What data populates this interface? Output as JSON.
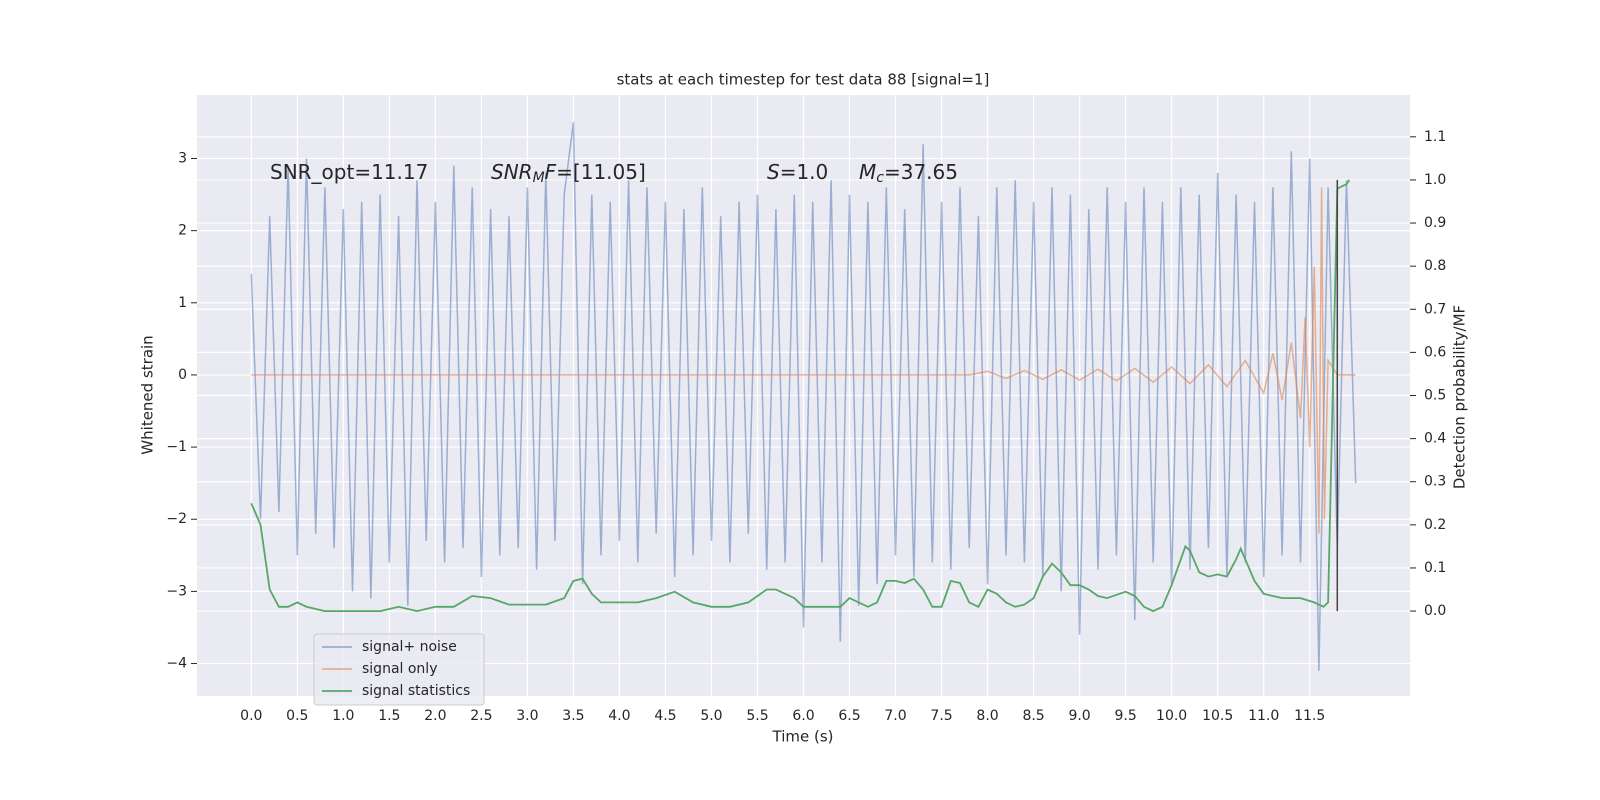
{
  "chart_data": {
    "type": "line",
    "title": "stats at each timestep for test data 88 [signal=1]",
    "xlabel": "Time (s)",
    "ylabel": "Whitened strain",
    "y2label": "Detection probability/MF",
    "xlim": [
      -0.59,
      12.59
    ],
    "ylim": [
      -4.45,
      3.88
    ],
    "y2lim": [
      -0.197,
      1.197
    ],
    "xticks": [
      {
        "value": 0,
        "label": "0.0"
      },
      0.5,
      {
        "value": 1,
        "label": "1.0"
      },
      1.5,
      {
        "value": 2,
        "label": "2.0"
      },
      2.5,
      {
        "value": 3,
        "label": "3.0"
      },
      3.5,
      {
        "value": 4,
        "label": "4.0"
      },
      4.5,
      {
        "value": 5,
        "label": "5.0"
      },
      5.5,
      {
        "value": 6,
        "label": "6.0"
      },
      6.5,
      {
        "value": 7,
        "label": "7.0"
      },
      7.5,
      {
        "value": 8,
        "label": "8.0"
      },
      8.5,
      {
        "value": 9,
        "label": "9.0"
      },
      9.5,
      {
        "value": 10,
        "label": "10.0"
      },
      10.5,
      {
        "value": 11,
        "label": "11.0"
      },
      11.5
    ],
    "yticks": [
      {
        "value": -4,
        "label": "−4"
      },
      {
        "value": -3,
        "label": "−3"
      },
      {
        "value": -2,
        "label": "−2"
      },
      {
        "value": -1,
        "label": "−1"
      },
      0,
      1,
      2,
      3
    ],
    "y2ticks": [
      {
        "value": 0,
        "label": "0.0"
      },
      0.1,
      0.2,
      0.3,
      0.4,
      0.5,
      0.6,
      0.7,
      0.8,
      0.9,
      {
        "value": 1,
        "label": "1.0"
      },
      1.1
    ],
    "grid": true,
    "legend": "lower left",
    "series": [
      {
        "name": "signal+ noise",
        "color": "#4c72b0",
        "opacity": 0.5,
        "x": [
          0.0,
          0.1,
          0.2,
          0.3,
          0.4,
          0.5,
          0.6,
          0.7,
          0.8,
          0.9,
          1.0,
          1.1,
          1.2,
          1.3,
          1.4,
          1.5,
          1.6,
          1.7,
          1.8,
          1.9,
          2.0,
          2.1,
          2.2,
          2.3,
          2.4,
          2.5,
          2.6,
          2.7,
          2.8,
          2.9,
          3.0,
          3.1,
          3.2,
          3.3,
          3.4,
          3.5,
          3.6,
          3.7,
          3.8,
          3.9,
          4.0,
          4.1,
          4.2,
          4.3,
          4.4,
          4.5,
          4.6,
          4.7,
          4.8,
          4.9,
          5.0,
          5.1,
          5.2,
          5.3,
          5.4,
          5.5,
          5.6,
          5.7,
          5.8,
          5.9,
          6.0,
          6.1,
          6.2,
          6.3,
          6.4,
          6.5,
          6.6,
          6.7,
          6.8,
          6.9,
          7.0,
          7.1,
          7.2,
          7.3,
          7.4,
          7.5,
          7.6,
          7.7,
          7.8,
          7.9,
          8.0,
          8.1,
          8.2,
          8.3,
          8.4,
          8.5,
          8.6,
          8.7,
          8.8,
          8.9,
          9.0,
          9.1,
          9.2,
          9.3,
          9.4,
          9.5,
          9.6,
          9.7,
          9.8,
          9.9,
          10.0,
          10.1,
          10.2,
          10.3,
          10.4,
          10.5,
          10.6,
          10.7,
          10.8,
          10.9,
          11.0,
          11.1,
          11.2,
          11.3,
          11.4,
          11.5,
          11.6,
          11.7,
          11.8,
          11.9,
          12.0
        ],
        "values": [
          1.4,
          -2.0,
          2.2,
          -1.9,
          2.9,
          -2.5,
          3.0,
          -2.2,
          2.6,
          -2.4,
          2.3,
          -3.0,
          2.4,
          -3.1,
          2.5,
          -2.6,
          2.2,
          -3.2,
          2.7,
          -2.3,
          2.4,
          -2.6,
          2.9,
          -2.4,
          2.6,
          -2.8,
          2.3,
          -2.5,
          2.2,
          -2.4,
          2.6,
          -2.7,
          2.8,
          -2.3,
          2.5,
          3.5,
          -2.9,
          2.5,
          -2.5,
          2.4,
          -2.3,
          2.7,
          -2.6,
          2.6,
          -2.2,
          2.4,
          -2.8,
          2.3,
          -2.5,
          2.6,
          -2.3,
          2.2,
          -2.6,
          2.4,
          -2.2,
          2.5,
          -2.7,
          2.3,
          -2.6,
          2.5,
          -3.5,
          2.4,
          -2.6,
          2.7,
          -3.7,
          2.5,
          -3.2,
          2.4,
          -2.9,
          2.6,
          -2.5,
          2.3,
          -2.8,
          3.2,
          -2.6,
          2.4,
          -2.7,
          2.6,
          -2.4,
          2.2,
          -2.9,
          2.6,
          -2.5,
          2.7,
          -2.6,
          2.4,
          -2.8,
          2.6,
          -3.0,
          2.5,
          -3.6,
          2.3,
          -2.7,
          2.6,
          -2.5,
          2.4,
          -3.4,
          2.6,
          -2.6,
          2.4,
          -2.9,
          2.6,
          -2.7,
          2.5,
          -2.4,
          2.8,
          -2.8,
          2.5,
          -2.6,
          2.4,
          -2.8,
          2.6,
          -2.5,
          3.1,
          -2.6,
          3.0,
          -4.1,
          2.6,
          -2.4,
          2.7,
          -1.5
        ]
      },
      {
        "name": "signal only",
        "color": "#dd8452",
        "opacity": 0.6,
        "x": [
          0,
          7.8,
          8.0,
          8.2,
          8.4,
          8.6,
          8.8,
          9.0,
          9.2,
          9.4,
          9.6,
          9.8,
          10.0,
          10.2,
          10.4,
          10.6,
          10.8,
          11.0,
          11.1,
          11.2,
          11.3,
          11.4,
          11.45,
          11.5,
          11.55,
          11.6,
          11.63,
          11.66,
          11.7,
          11.8,
          12.0
        ],
        "values": [
          0,
          0,
          0.05,
          -0.05,
          0.06,
          -0.06,
          0.07,
          -0.07,
          0.08,
          -0.08,
          0.09,
          -0.1,
          0.11,
          -0.12,
          0.14,
          -0.16,
          0.2,
          -0.25,
          0.3,
          -0.35,
          0.45,
          -0.6,
          0.8,
          -1.0,
          1.5,
          -2.2,
          2.6,
          -2.0,
          0.2,
          0,
          0
        ]
      },
      {
        "name": "signal statistics",
        "color": "#55a868",
        "opacity": 1,
        "axis": "y2",
        "x": [
          0.0,
          0.1,
          0.2,
          0.3,
          0.4,
          0.5,
          0.6,
          0.8,
          1.0,
          1.2,
          1.4,
          1.6,
          1.8,
          2.0,
          2.2,
          2.4,
          2.6,
          2.8,
          3.0,
          3.2,
          3.4,
          3.5,
          3.6,
          3.7,
          3.8,
          4.0,
          4.2,
          4.4,
          4.6,
          4.8,
          5.0,
          5.2,
          5.4,
          5.6,
          5.7,
          5.9,
          6.0,
          6.2,
          6.4,
          6.5,
          6.6,
          6.7,
          6.8,
          6.9,
          7.0,
          7.1,
          7.2,
          7.3,
          7.4,
          7.5,
          7.6,
          7.7,
          7.8,
          7.9,
          8.0,
          8.1,
          8.2,
          8.3,
          8.4,
          8.5,
          8.6,
          8.7,
          8.8,
          8.9,
          9.0,
          9.1,
          9.2,
          9.3,
          9.5,
          9.6,
          9.7,
          9.8,
          9.9,
          10.0,
          10.1,
          10.15,
          10.2,
          10.3,
          10.4,
          10.5,
          10.6,
          10.7,
          10.75,
          10.8,
          10.9,
          11.0,
          11.2,
          11.4,
          11.55,
          11.65,
          11.7,
          11.75,
          11.8,
          11.9,
          11.93
        ],
        "values": [
          0.25,
          0.2,
          0.05,
          0.01,
          0.01,
          0.02,
          0.01,
          0.0,
          0.0,
          0.0,
          0.0,
          0.01,
          0.0,
          0.01,
          0.01,
          0.035,
          0.03,
          0.015,
          0.015,
          0.015,
          0.03,
          0.07,
          0.075,
          0.04,
          0.02,
          0.02,
          0.02,
          0.03,
          0.045,
          0.02,
          0.01,
          0.01,
          0.02,
          0.05,
          0.05,
          0.03,
          0.01,
          0.01,
          0.01,
          0.03,
          0.02,
          0.01,
          0.02,
          0.07,
          0.07,
          0.065,
          0.075,
          0.05,
          0.01,
          0.01,
          0.07,
          0.065,
          0.02,
          0.01,
          0.05,
          0.04,
          0.02,
          0.01,
          0.015,
          0.03,
          0.08,
          0.11,
          0.09,
          0.06,
          0.06,
          0.05,
          0.035,
          0.03,
          0.045,
          0.035,
          0.01,
          0.0,
          0.01,
          0.06,
          0.12,
          0.15,
          0.14,
          0.09,
          0.08,
          0.085,
          0.08,
          0.12,
          0.145,
          0.12,
          0.07,
          0.04,
          0.03,
          0.03,
          0.02,
          0.01,
          0.02,
          0.5,
          0.98,
          0.99,
          1.0
        ]
      }
    ],
    "marker_line": {
      "color": "#444444",
      "x": 11.8,
      "y2": [
        0,
        1.0
      ]
    },
    "annotations": [
      {
        "parts": [
          {
            "text": "SNR_opt=11.17",
            "style": "normal"
          }
        ]
      },
      {
        "parts": [
          {
            "text": "SNR",
            "style": "italic"
          },
          {
            "text": "M",
            "style": "italic-sub"
          },
          {
            "text": "F",
            "style": "italic"
          },
          {
            "text": "=[11.05]",
            "style": "normal"
          }
        ]
      },
      {
        "parts": [
          {
            "text": "S",
            "style": "italic"
          },
          {
            "text": "=1.0",
            "style": "normal"
          }
        ]
      },
      {
        "parts": [
          {
            "text": "M",
            "style": "italic"
          },
          {
            "text": "c",
            "style": "italic-sub"
          },
          {
            "text": "=37.65",
            "style": "normal"
          }
        ]
      }
    ]
  }
}
